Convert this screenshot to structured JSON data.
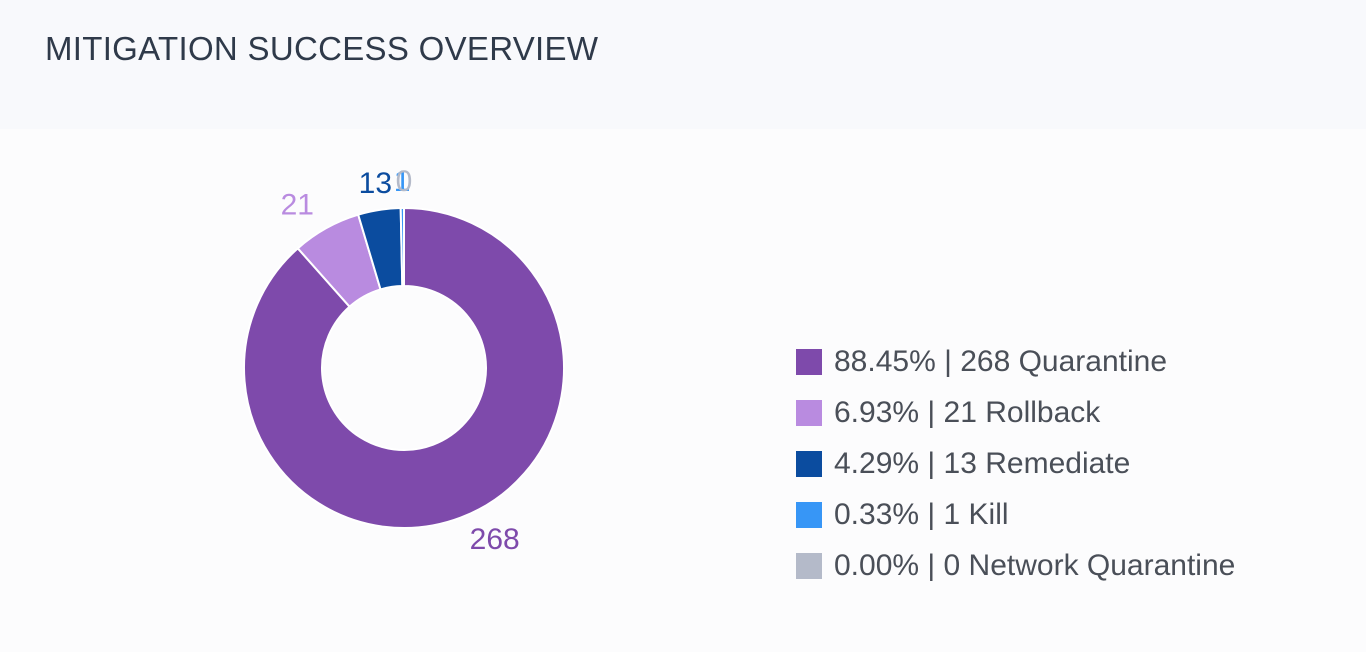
{
  "header": {
    "title": "MITIGATION SUCCESS OVERVIEW"
  },
  "chart_data": {
    "type": "pie",
    "donut": true,
    "title": "MITIGATION SUCCESS OVERVIEW",
    "legend_position": "right",
    "series": [
      {
        "name": "Quarantine",
        "value": 268,
        "percent": "88.45%",
        "color": "#7e4aab"
      },
      {
        "name": "Rollback",
        "value": 21,
        "percent": "6.93%",
        "color": "#b98be0"
      },
      {
        "name": "Remediate",
        "value": 13,
        "percent": "4.29%",
        "color": "#0b4c9f"
      },
      {
        "name": "Kill",
        "value": 1,
        "percent": "0.33%",
        "color": "#3796f6"
      },
      {
        "name": "Network Quarantine",
        "value": 0,
        "percent": "0.00%",
        "color": "#b4bac9"
      }
    ]
  },
  "legend": {
    "items": [
      {
        "label": "88.45% | 268 Quarantine",
        "color": "#7e4aab"
      },
      {
        "label": "6.93% | 21 Rollback",
        "color": "#b98be0"
      },
      {
        "label": "4.29% | 13 Remediate",
        "color": "#0b4c9f"
      },
      {
        "label": "0.33% | 1 Kill",
        "color": "#3796f6"
      },
      {
        "label": "0.00% | 0 Network Quarantine",
        "color": "#b4bac9"
      }
    ]
  }
}
